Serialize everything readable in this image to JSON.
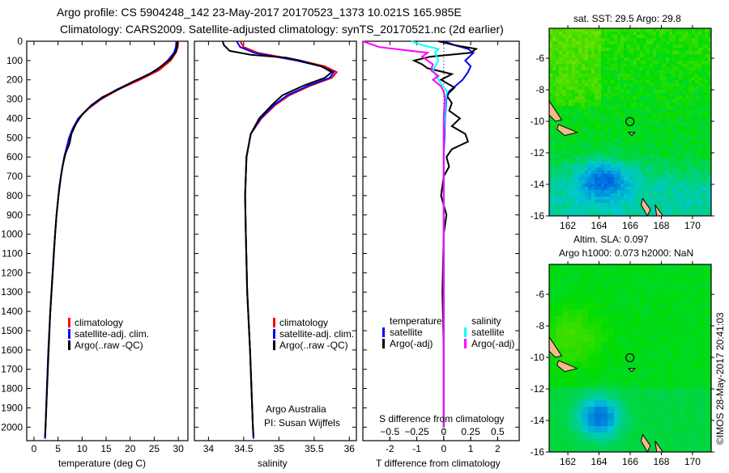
{
  "title_line1": "Argo profile: CS 5904248_142 23-May-2017 20170523_1373 10.021S 165.985E",
  "title_line2": "Climatology: CARS2009. Satellite-adjusted climatology: synTS_20170521.nc (2d earlier)",
  "side_stamp": "©IMOS 28-May-2017 20:41:03",
  "colors": {
    "climatology": "#ff0000",
    "satellite": "#0000ff",
    "argo": "#000000",
    "sal_sat": "#00ffff",
    "sal_argo": "#ff00ff"
  },
  "chart_data": [
    {
      "type": "line",
      "id": "temperature",
      "xlabel": "temperature (deg C)",
      "ylabel": "",
      "xlim": [
        -1.5,
        32
      ],
      "ylim": [
        2070,
        0
      ],
      "xticks": [
        0,
        5,
        10,
        15,
        20,
        25,
        30
      ],
      "yticks": [
        0,
        100,
        200,
        300,
        400,
        500,
        600,
        700,
        800,
        900,
        1000,
        1100,
        1200,
        1300,
        1400,
        1500,
        1600,
        1700,
        1800,
        1900,
        2000
      ],
      "legend": [
        "climatology",
        "satellite-adj. clim.",
        "Argo(..raw -QC)"
      ],
      "legend_placement": "lower-center",
      "series": [
        {
          "name": "climatology",
          "color": "#ff0000",
          "depth": [
            0,
            30,
            60,
            100,
            150,
            200,
            250,
            300,
            350,
            400,
            450,
            500,
            600,
            700,
            800,
            900,
            1000,
            1200,
            1400,
            1600,
            1800,
            2000,
            2060
          ],
          "values": [
            30.0,
            29.9,
            29.5,
            28.4,
            26.0,
            22.0,
            17.5,
            14.0,
            11.3,
            9.3,
            8.2,
            7.4,
            6.3,
            5.6,
            5.1,
            4.7,
            4.4,
            3.9,
            3.4,
            3.0,
            2.7,
            2.4,
            2.3
          ]
        },
        {
          "name": "satellite-adj. clim.",
          "color": "#0000ff",
          "depth": [
            0,
            30,
            60,
            100,
            150,
            200,
            250,
            300,
            350,
            400,
            450,
            500,
            600,
            700,
            800,
            900,
            1000,
            1200,
            1400,
            1600,
            1800,
            2000,
            2060
          ],
          "values": [
            29.6,
            29.5,
            29.1,
            27.8,
            25.5,
            21.5,
            17.2,
            13.8,
            11.2,
            9.2,
            8.1,
            7.3,
            6.3,
            5.6,
            5.1,
            4.7,
            4.4,
            3.9,
            3.4,
            3.0,
            2.7,
            2.4,
            2.3
          ]
        },
        {
          "name": "Argo(..raw -QC)",
          "color": "#000000",
          "depth": [
            0,
            20,
            50,
            90,
            130,
            170,
            210,
            250,
            290,
            330,
            380,
            430,
            480,
            530,
            580,
            650,
            750,
            900,
            1100,
            1400,
            1700,
            2000,
            2050
          ],
          "values": [
            29.8,
            29.8,
            29.6,
            28.5,
            26.5,
            24.0,
            20.5,
            17.5,
            14.2,
            12.0,
            10.0,
            8.7,
            7.8,
            7.4,
            6.6,
            5.9,
            5.3,
            4.7,
            4.1,
            3.4,
            2.9,
            2.4,
            2.3
          ]
        }
      ]
    },
    {
      "type": "line",
      "id": "salinity",
      "xlabel": "salinity",
      "xlim": [
        33.8,
        36.1
      ],
      "ylim": [
        2070,
        0
      ],
      "xticks": [
        34,
        34.5,
        35,
        35.5,
        36
      ],
      "legend": [
        "climatology",
        "satellite-adj. clim.",
        "Argo(..raw -QC)"
      ],
      "legend_placement": "lower-center",
      "annotation": [
        "Argo Australia",
        "PI: Susan Wijffels"
      ],
      "series": [
        {
          "name": "climatology",
          "color": "#ff0000",
          "depth": [
            0,
            30,
            60,
            100,
            130,
            160,
            190,
            230,
            280,
            330,
            400,
            480,
            600,
            800,
            1000,
            1300,
            1600,
            2000,
            2060
          ],
          "values": [
            34.45,
            34.5,
            34.7,
            35.3,
            35.65,
            35.82,
            35.75,
            35.45,
            35.15,
            34.95,
            34.75,
            34.6,
            34.54,
            34.52,
            34.53,
            34.55,
            34.59,
            34.63,
            34.64
          ]
        },
        {
          "name": "satellite-adj. clim.",
          "color": "#0000ff",
          "depth": [
            0,
            30,
            60,
            100,
            130,
            160,
            190,
            230,
            280,
            330,
            400,
            480,
            600,
            800,
            1000,
            1300,
            1600,
            2000,
            2060
          ],
          "values": [
            34.4,
            34.45,
            34.65,
            35.25,
            35.6,
            35.78,
            35.72,
            35.42,
            35.12,
            34.93,
            34.74,
            34.6,
            34.54,
            34.52,
            34.53,
            34.55,
            34.59,
            34.63,
            34.64
          ]
        },
        {
          "name": "Argo(..raw -QC)",
          "color": "#000000",
          "depth": [
            0,
            20,
            50,
            70,
            85,
            100,
            130,
            160,
            190,
            230,
            280,
            330,
            400,
            480,
            600,
            800,
            1000,
            1300,
            1600,
            2000,
            2050
          ],
          "values": [
            34.2,
            34.22,
            34.3,
            34.6,
            35.1,
            35.3,
            35.6,
            35.75,
            35.65,
            35.35,
            35.05,
            34.9,
            34.72,
            34.6,
            34.54,
            34.52,
            34.53,
            34.55,
            34.59,
            34.63,
            34.64
          ]
        }
      ]
    },
    {
      "type": "line",
      "id": "difference",
      "xlabel": "T difference from climatology",
      "xlabel_top": "S difference from climatology",
      "xlim": [
        -3,
        2.8
      ],
      "ylim": [
        2070,
        0
      ],
      "xticks": [
        -2,
        -1,
        0,
        1,
        2
      ],
      "xticks_S": [
        -0.5,
        -0.25,
        0,
        0.25,
        0.5
      ],
      "legend_temperature": {
        "header": "temperature",
        "items": [
          "satellite",
          "Argo(-adj)"
        ]
      },
      "legend_salinity": {
        "header": "salinity",
        "items": [
          "satellite",
          "Argo(-adj)"
        ]
      },
      "legend_placement": "lower-center",
      "series": [
        {
          "name": "temperature satellite",
          "color": "#0000ff",
          "units": "T",
          "depth": [
            0,
            20,
            40,
            60,
            100,
            130,
            160,
            200,
            260,
            300,
            400,
            600,
            1000,
            2000
          ],
          "values": [
            0,
            0.4,
            0.9,
            1.1,
            0.8,
            1.0,
            0.9,
            0.7,
            0.2,
            0.1,
            0.05,
            0,
            0,
            0
          ]
        },
        {
          "name": "temperature Argo(-adj)",
          "color": "#000000",
          "units": "T",
          "depth": [
            0,
            20,
            40,
            60,
            80,
            100,
            120,
            140,
            170,
            200,
            240,
            280,
            320,
            360,
            400,
            440,
            480,
            520,
            560,
            600,
            650,
            700,
            800,
            900,
            1000,
            1300,
            1600,
            2000
          ],
          "values": [
            -0.2,
            0.4,
            1.2,
            1.0,
            -0.5,
            -1.1,
            -0.8,
            -0.6,
            0.3,
            -0.1,
            0.4,
            0.1,
            0.3,
            0.2,
            0.6,
            0.3,
            0.8,
            0.9,
            0.3,
            0.1,
            0.2,
            0,
            -0.1,
            0.1,
            0,
            -0.05,
            0,
            0
          ]
        },
        {
          "name": "salinity satellite",
          "color": "#00ffff",
          "units": "S",
          "depth": [
            0,
            20,
            40,
            60,
            100,
            150,
            200,
            260,
            300,
            500,
            800,
            2000
          ],
          "values": [
            -0.3,
            -0.2,
            -0.05,
            -0.08,
            -0.05,
            -0.1,
            -0.05,
            0.03,
            0.02,
            0.0,
            0.0,
            0.0
          ]
        },
        {
          "name": "salinity Argo(-adj)",
          "color": "#ff00ff",
          "units": "S",
          "depth": [
            0,
            30,
            60,
            80,
            100,
            120,
            150,
            180,
            200,
            230,
            260,
            300,
            400,
            600,
            1000,
            2000
          ],
          "values": [
            -0.75,
            -0.6,
            -0.15,
            -0.2,
            -0.15,
            -0.1,
            -0.12,
            -0.05,
            -0.1,
            -0.03,
            0,
            0.01,
            0,
            0,
            0,
            0
          ]
        }
      ]
    },
    {
      "type": "heatmap",
      "id": "sst_map",
      "title": "sat. SST: 29.5 Argo: 29.8",
      "xlim": [
        160.8,
        171.2
      ],
      "ylim": [
        -16,
        -4.1
      ],
      "xticks": [
        162,
        164,
        166,
        168,
        170
      ],
      "yticks": [
        -6,
        -8,
        -10,
        -12,
        -14,
        -16
      ],
      "marker": {
        "lon": 165.985,
        "lat": -10.021
      }
    },
    {
      "type": "heatmap",
      "id": "sla_map",
      "title_line1": "Altim. SLA: 0.097",
      "title_line2": "Argo h1000: 0.073 h2000: NaN",
      "xlim": [
        160.8,
        171.2
      ],
      "ylim": [
        -16,
        -4.1
      ],
      "xticks": [
        162,
        164,
        166,
        168,
        170
      ],
      "yticks": [
        -6,
        -8,
        -10,
        -12,
        -14,
        -16
      ],
      "marker": {
        "lon": 165.985,
        "lat": -10.021
      }
    }
  ]
}
